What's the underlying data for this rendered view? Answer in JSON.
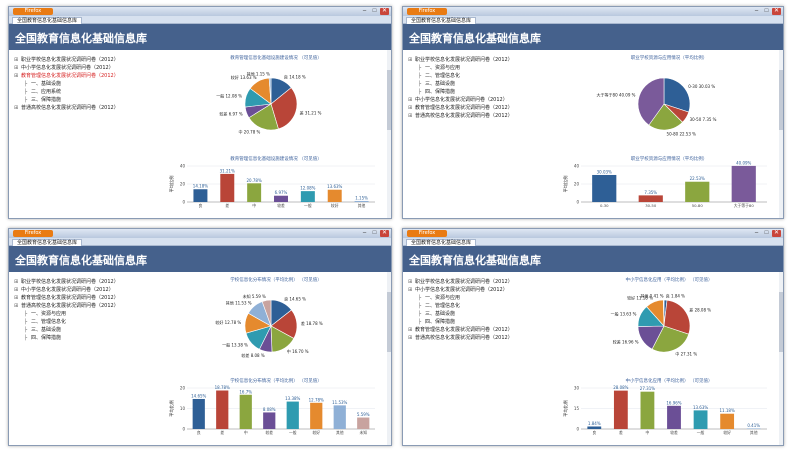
{
  "app_button_label": "Firefox",
  "tab_label": "全国教育信息化基础信息库",
  "header_title": "全国教育信息化基础信息库",
  "window_controls": {
    "minimize": "–",
    "maximize": "□",
    "close": "✕"
  },
  "icons": {
    "tree_expander": "⊞-icon",
    "window_close": "close-icon"
  },
  "colors": {
    "header": "#45618c",
    "app_button": "#e97b13",
    "selected_node": "#d62020"
  },
  "panels": [
    {
      "tree": [
        {
          "label": "职业学校信息化发展状况调研问卷（2012）",
          "level": 0,
          "selected": false
        },
        {
          "label": "中小学信息化发展状况调研问卷（2012）",
          "level": 0,
          "selected": false
        },
        {
          "label": "教育管理信息化发展状况调研问卷（2012）",
          "level": 0,
          "selected": true
        },
        {
          "label": "一、基础设施",
          "level": 1,
          "selected": false
        },
        {
          "label": "二、应用系统",
          "level": 1,
          "selected": false
        },
        {
          "label": "三、保障措施",
          "level": 1,
          "selected": false
        },
        {
          "label": "普通高校信息化发展状况调研问卷（2012）",
          "level": 0,
          "selected": false
        }
      ],
      "chart_data": [
        {
          "type": "pie",
          "title": "教育管理信息化基础设施建设情况  （可见值）",
          "slices": [
            {
              "label": "良",
              "value": 14.18,
              "text": "良  14.18 %",
              "color": "#2e5f96"
            },
            {
              "label": "差",
              "value": 31.21,
              "text": "差  31.21 %",
              "color": "#b94538"
            },
            {
              "label": "中",
              "value": 20.78,
              "text": "中  20.78 %",
              "color": "#8ba63f"
            },
            {
              "label": "较差",
              "value": 6.97,
              "text": "较差  6.97 %",
              "color": "#6b4f96"
            },
            {
              "label": "一般",
              "value": 12.08,
              "text": "一般  12.08 %",
              "color": "#2f9bb0"
            },
            {
              "label": "较好",
              "value": 13.63,
              "text": "较好  13.63 %",
              "color": "#e58a2e"
            },
            {
              "label": "其他",
              "value": 1.15,
              "text": "其他  1.15 %",
              "color": "#8fb0d6"
            }
          ]
        },
        {
          "type": "bar",
          "title": "教育管理信息化基础设施建设情况  （可见值）",
          "ylabel": "平均比例",
          "ylim": [
            0,
            40
          ],
          "yticks": [
            "40",
            "20",
            "0"
          ],
          "categories": [
            "良",
            "差",
            "中",
            "较差",
            "一般",
            "较好",
            "其他"
          ],
          "values": [
            14.18,
            31.21,
            20.78,
            6.97,
            12.08,
            13.63,
            1.15
          ],
          "value_labels": [
            "14.18%",
            "31.21%",
            "20.78%",
            "6.97%",
            "12.08%",
            "13.63%",
            "1.15%"
          ],
          "colors": [
            "#2e5f96",
            "#b94538",
            "#8ba63f",
            "#6b4f96",
            "#2f9bb0",
            "#e58a2e",
            "#8fb0d6"
          ]
        }
      ]
    },
    {
      "tree": [
        {
          "label": "职业学校信息化发展状况调研问卷（2012）",
          "level": 0,
          "selected": false
        },
        {
          "label": "一、资源与应用",
          "level": 1,
          "selected": false
        },
        {
          "label": "二、管理信息化",
          "level": 1,
          "selected": false
        },
        {
          "label": "三、基础设施",
          "level": 1,
          "selected": false
        },
        {
          "label": "四、保障措施",
          "level": 1,
          "selected": false
        },
        {
          "label": "中小学信息化发展状况调研问卷（2012）",
          "level": 0,
          "selected": false
        },
        {
          "label": "教育管理信息化发展状况调研问卷（2012）",
          "level": 0,
          "selected": false
        },
        {
          "label": "普通高校信息化发展状况调研问卷（2012）",
          "level": 0,
          "selected": false
        }
      ],
      "chart_data": [
        {
          "type": "pie",
          "title": "职业学校资源与应用情况（平均比例）",
          "slices": [
            {
              "label": "0-30",
              "value": 30.03,
              "text": "0-30  30.03 %",
              "color": "#2e5f96"
            },
            {
              "label": "30-50",
              "value": 7.35,
              "text": "30-50  7.35 %",
              "color": "#b94538"
            },
            {
              "label": "50-80",
              "value": 22.53,
              "text": "50-80  22.53 %",
              "color": "#8ba63f"
            },
            {
              "label": "大于等于80",
              "value": 40.09,
              "text": "大于等于80  40.09 %",
              "color": "#7a5a9a"
            }
          ]
        },
        {
          "type": "bar",
          "title": "职业学校资源与应用情况（平均比例）",
          "ylabel": "平均比例",
          "ylim": [
            0,
            40
          ],
          "yticks": [
            "40",
            "20",
            "0"
          ],
          "categories": [
            "0-30",
            "30-50",
            "50-80",
            "大于等于80"
          ],
          "values": [
            30.03,
            7.35,
            22.53,
            40.09
          ],
          "value_labels": [
            "30.03%",
            "7.35%",
            "22.53%",
            "40.09%"
          ],
          "colors": [
            "#2e5f96",
            "#b94538",
            "#8ba63f",
            "#7a5a9a"
          ]
        }
      ]
    },
    {
      "tree": [
        {
          "label": "职业学校信息化发展状况调研问卷（2012）",
          "level": 0,
          "selected": false
        },
        {
          "label": "中小学信息化发展状况调研问卷（2012）",
          "level": 0,
          "selected": false
        },
        {
          "label": "教育管理信息化发展状况调研问卷（2012）",
          "level": 0,
          "selected": false
        },
        {
          "label": "普通高校信息化发展状况调研问卷（2012）",
          "level": 0,
          "selected": false
        },
        {
          "label": "一、资源与应用",
          "level": 1,
          "selected": false
        },
        {
          "label": "二、管理信息化",
          "level": 1,
          "selected": false
        },
        {
          "label": "三、基础设施",
          "level": 1,
          "selected": false
        },
        {
          "label": "四、保障措施",
          "level": 1,
          "selected": false
        }
      ],
      "chart_data": [
        {
          "type": "pie",
          "title": "学校信息化分布情况（平均比例）  （可见值）",
          "slices": [
            {
              "label": "良",
              "value": 14.65,
              "text": "良  14.65 %",
              "color": "#2e5f96"
            },
            {
              "label": "差",
              "value": 18.78,
              "text": "差  18.78 %",
              "color": "#b94538"
            },
            {
              "label": "中",
              "value": 16.7,
              "text": "中  16.70 %",
              "color": "#8ba63f"
            },
            {
              "label": "较差",
              "value": 8.08,
              "text": "较差  8.08 %",
              "color": "#6b4f96"
            },
            {
              "label": "一般",
              "value": 13.38,
              "text": "一般  13.38 %",
              "color": "#2f9bb0"
            },
            {
              "label": "较好",
              "value": 12.78,
              "text": "较好  12.78 %",
              "color": "#e58a2e"
            },
            {
              "label": "其他",
              "value": 11.53,
              "text": "其他  11.53 %",
              "color": "#8fb0d6"
            },
            {
              "label": "未知",
              "value": 5.59,
              "text": "未知  5.59 %",
              "color": "#c8a39f"
            }
          ]
        },
        {
          "type": "bar",
          "title": "学校信息化分布情况（平均比例）  （可见值）",
          "ylabel": "平均比例",
          "ylim": [
            0,
            20
          ],
          "yticks": [
            "20",
            "10",
            "0"
          ],
          "categories": [
            "良",
            "差",
            "中",
            "较差",
            "一般",
            "较好",
            "其他",
            "未知"
          ],
          "values": [
            14.65,
            18.78,
            16.7,
            8.08,
            13.38,
            12.78,
            11.53,
            5.59
          ],
          "value_labels": [
            "14.65%",
            "18.78%",
            "16.7%",
            "8.08%",
            "13.38%",
            "12.78%",
            "11.53%",
            "5.59%"
          ],
          "colors": [
            "#2e5f96",
            "#b94538",
            "#8ba63f",
            "#6b4f96",
            "#2f9bb0",
            "#e58a2e",
            "#8fb0d6",
            "#c8a39f"
          ]
        }
      ]
    },
    {
      "tree": [
        {
          "label": "职业学校信息化发展状况调研问卷（2012）",
          "level": 0,
          "selected": false
        },
        {
          "label": "中小学信息化发展状况调研问卷（2012）",
          "level": 0,
          "selected": false
        },
        {
          "label": "一、资源与应用",
          "level": 1,
          "selected": false
        },
        {
          "label": "二、管理信息化",
          "level": 1,
          "selected": false
        },
        {
          "label": "三、基础设施",
          "level": 1,
          "selected": false
        },
        {
          "label": "四、保障措施",
          "level": 1,
          "selected": false
        },
        {
          "label": "教育管理信息化发展状况调研问卷（2012）",
          "level": 0,
          "selected": false
        },
        {
          "label": "普通高校信息化发展状况调研问卷（2012）",
          "level": 0,
          "selected": false
        }
      ],
      "chart_data": [
        {
          "type": "pie",
          "title": "中小学信息化应用（平均比例）  （可见值）",
          "slices": [
            {
              "label": "良",
              "value": 1.84,
              "text": "良  1.84 %",
              "color": "#2e5f96"
            },
            {
              "label": "差",
              "value": 28.08,
              "text": "差  28.08 %",
              "color": "#b94538"
            },
            {
              "label": "中",
              "value": 27.31,
              "text": "中  27.31 %",
              "color": "#8ba63f"
            },
            {
              "label": "较差",
              "value": 16.96,
              "text": "较差  16.96 %",
              "color": "#6b4f96"
            },
            {
              "label": "一般",
              "value": 13.63,
              "text": "一般  13.63 %",
              "color": "#2f9bb0"
            },
            {
              "label": "较好",
              "value": 11.18,
              "text": "较好  11.18 %",
              "color": "#e58a2e"
            },
            {
              "label": "其他",
              "value": 0.41,
              "text": "其他  0.41 %",
              "color": "#8fb0d6"
            }
          ]
        },
        {
          "type": "bar",
          "title": "中小学信息化应用（平均比例）  （可见值）",
          "ylabel": "平均比例",
          "ylim": [
            0,
            30
          ],
          "yticks": [
            "30",
            "15",
            "0"
          ],
          "categories": [
            "良",
            "差",
            "中",
            "较差",
            "一般",
            "较好",
            "其他"
          ],
          "values": [
            1.84,
            28.08,
            27.31,
            16.96,
            13.63,
            11.18,
            0.41
          ],
          "value_labels": [
            "1.84%",
            "28.08%",
            "27.31%",
            "16.96%",
            "13.63%",
            "11.18%",
            "0.41%"
          ],
          "colors": [
            "#2e5f96",
            "#b94538",
            "#8ba63f",
            "#6b4f96",
            "#2f9bb0",
            "#e58a2e",
            "#8fb0d6"
          ]
        }
      ]
    }
  ]
}
